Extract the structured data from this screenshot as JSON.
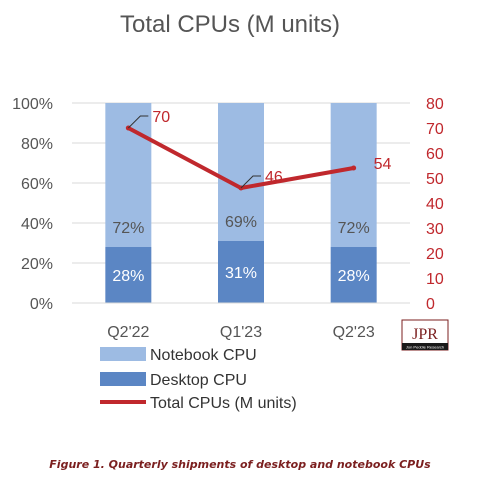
{
  "caption": "Figure 1. Quarterly shipments of desktop and notebook CPUs",
  "logo": {
    "text": "JPR",
    "subtext": "Jon Peddie Research"
  },
  "colors": {
    "notebook": "#9dbbe3",
    "desktop": "#5b86c4",
    "line": "#c0282d",
    "text": "#555555",
    "grid": "#d9d9d9",
    "right_axis": "#c0282d"
  },
  "chart_data": {
    "type": "bar",
    "stacked": true,
    "percent": true,
    "title": "Total CPUs (M units)",
    "categories": [
      "Q2'22",
      "Q1'23",
      "Q2'23"
    ],
    "series": [
      {
        "name": "Desktop CPU",
        "type": "bar",
        "values": [
          28,
          31,
          28
        ],
        "labels": [
          "28%",
          "31%",
          "28%"
        ]
      },
      {
        "name": "Notebook CPU",
        "type": "bar",
        "values": [
          72,
          69,
          72
        ],
        "labels": [
          "72%",
          "69%",
          "72%"
        ]
      },
      {
        "name": "Total CPUs (M units)",
        "type": "line",
        "axis": "right",
        "values": [
          70,
          46,
          54
        ],
        "labels": [
          "70",
          "46",
          "54"
        ]
      }
    ],
    "y_left": {
      "min": 0,
      "max": 100,
      "step": 20,
      "ticks": [
        "0%",
        "20%",
        "40%",
        "60%",
        "80%",
        "100%"
      ]
    },
    "y_right": {
      "min": 0,
      "max": 80,
      "step": 10,
      "ticks": [
        "0",
        "10",
        "20",
        "30",
        "40",
        "50",
        "60",
        "70",
        "80"
      ]
    },
    "grid": true,
    "legend": {
      "position": "bottom-left",
      "order": [
        "Notebook CPU",
        "Desktop CPU",
        "Total CPUs (M units)"
      ]
    }
  }
}
